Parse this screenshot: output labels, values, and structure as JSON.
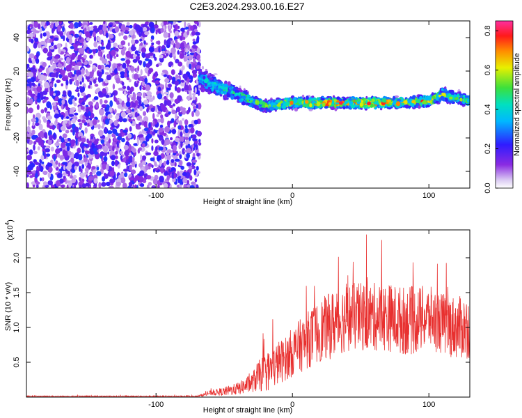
{
  "title": "C2E3.2024.293.00.16.E27",
  "chart_data": [
    {
      "type": "heatmap",
      "xlabel": "Height of straight line (km)",
      "ylabel": "Frequency (Hz)",
      "xlim": [
        -195,
        130
      ],
      "ylim": [
        -50,
        50
      ],
      "xticks": [
        -100,
        0,
        100
      ],
      "xtick_labels": [
        "-100",
        "0",
        "100"
      ],
      "yticks": [
        -40,
        -20,
        0,
        20,
        40
      ],
      "ytick_labels": [
        "-40",
        "-20",
        "0",
        "20",
        "40"
      ],
      "colorbar": {
        "label": "Normalized spectral amplitude",
        "range": [
          0.0,
          0.85
        ],
        "ticks": [
          0.0,
          0.2,
          0.4,
          0.6,
          0.8
        ],
        "tick_labels": [
          "0.0",
          "0.2",
          "0.4",
          "0.6",
          "0.8"
        ],
        "colormap": "rainbow (white → violet → blue → cyan → green → yellow → orange → red → magenta)"
      },
      "noise_region": {
        "x": [
          -195,
          -68
        ],
        "frequency_range": [
          -50,
          50
        ],
        "amplitude_range": [
          0.05,
          0.25
        ]
      },
      "signal_band": {
        "center_x": [
          -68,
          -60,
          -50,
          -40,
          -30,
          -20,
          -10,
          0,
          20,
          40,
          60,
          80,
          100,
          110,
          130
        ],
        "center_frequency": [
          16,
          12,
          9,
          6,
          2,
          -1,
          0,
          1,
          1,
          1,
          1,
          1,
          2,
          6,
          2
        ],
        "half_width": [
          7,
          6,
          5,
          4,
          4,
          3,
          3,
          3,
          3,
          3,
          3,
          3,
          3,
          4,
          3
        ],
        "peak_amplitude": [
          0.35,
          0.45,
          0.5,
          0.5,
          0.55,
          0.6,
          0.65,
          0.7,
          0.8,
          0.75,
          0.8,
          0.7,
          0.75,
          0.6,
          0.55
        ]
      }
    },
    {
      "type": "line",
      "xlabel": "Height of straight line (km)",
      "ylabel": "SNR (10 * v/v)",
      "y_multiplier_label": "(x10",
      "y_multiplier_exponent": "4",
      "xlim": [
        -195,
        130
      ],
      "ylim": [
        0,
        2.4
      ],
      "xticks": [
        -100,
        0,
        100
      ],
      "xtick_labels": [
        "-100",
        "0",
        "100"
      ],
      "yticks": [
        0.5,
        1.0,
        1.5,
        2.0
      ],
      "ytick_labels": [
        "0.5",
        "1.0",
        "1.5",
        "2.0"
      ],
      "color": "#e8302f",
      "series": [
        {
          "x": [
            -195,
            -150,
            -100,
            -70,
            -60,
            -50,
            -40,
            -30,
            -25,
            -20,
            -15,
            -10,
            -5,
            0,
            10,
            20,
            30,
            40,
            50,
            60,
            70,
            80,
            90,
            100,
            110,
            120,
            130
          ],
          "mean": [
            0.01,
            0.01,
            0.01,
            0.01,
            0.06,
            0.08,
            0.12,
            0.2,
            0.3,
            0.35,
            0.4,
            0.5,
            0.55,
            0.65,
            0.8,
            0.95,
            1.05,
            1.15,
            1.15,
            1.15,
            1.15,
            1.1,
            1.1,
            1.15,
            1.05,
            1.0,
            1.0
          ],
          "spread": [
            0.01,
            0.01,
            0.01,
            0.01,
            0.04,
            0.07,
            0.1,
            0.15,
            0.25,
            0.3,
            0.35,
            0.35,
            0.35,
            0.4,
            0.45,
            0.5,
            0.55,
            0.55,
            0.55,
            0.55,
            0.55,
            0.55,
            0.55,
            0.5,
            0.5,
            0.5,
            0.5
          ]
        }
      ]
    }
  ]
}
